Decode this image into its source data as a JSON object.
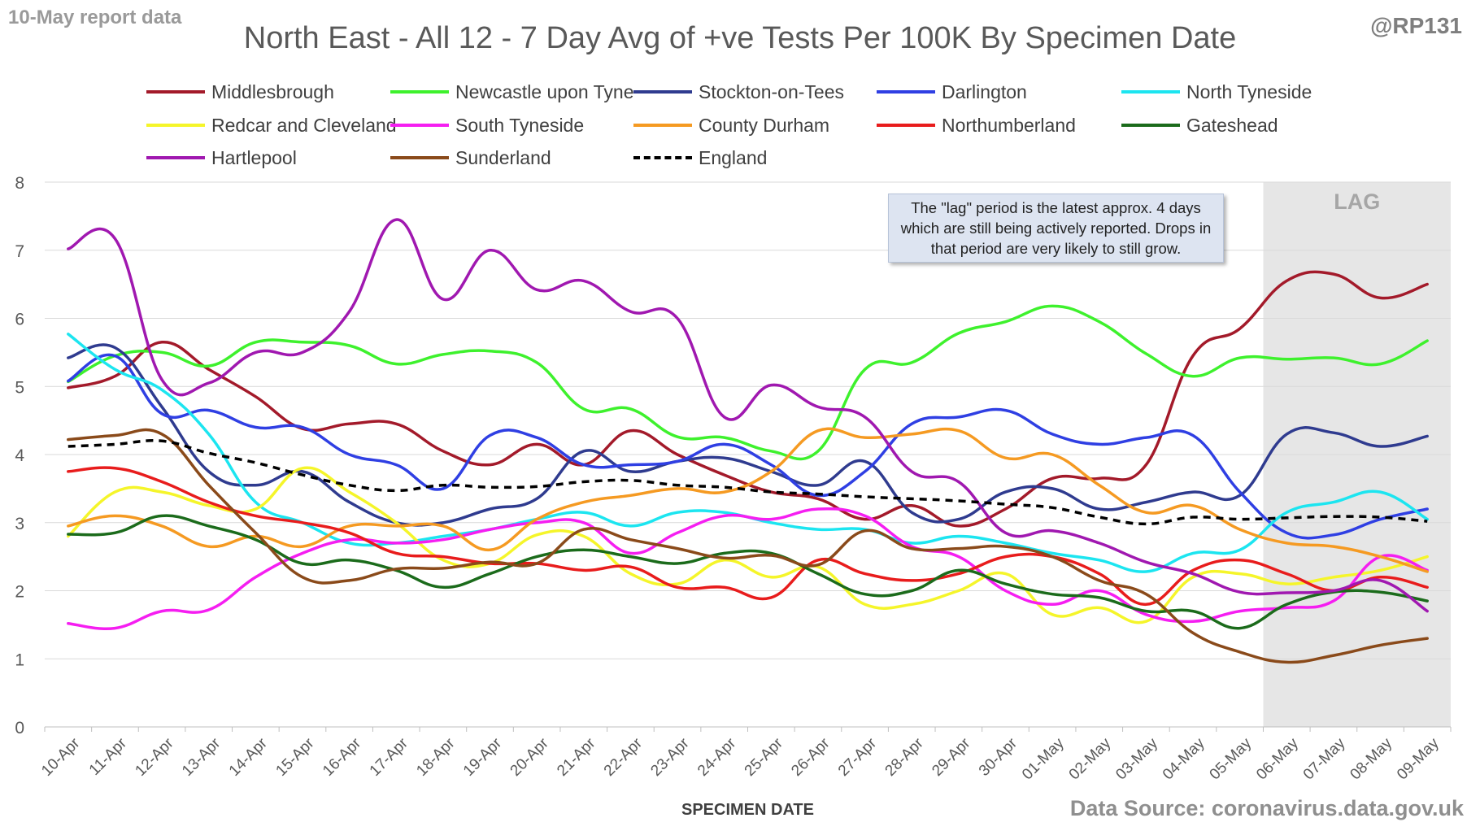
{
  "corner_left": "10-May report data",
  "corner_right": "@RP131",
  "source": "Data Source: coronavirus.data.gov.uk",
  "note": "The \"lag\" period is the latest approx. 4 days which are still being actively reported.  Drops in that period are very likely to still grow.",
  "chart_data": {
    "type": "line",
    "title": "North East - All 12 - 7 Day Avg of +ve Tests Per 100K By Specimen Date",
    "xlabel": "SPECIMEN DATE",
    "ylabel": "",
    "ylim": [
      0,
      8
    ],
    "yticks": [
      "0",
      "1",
      "2",
      "3",
      "4",
      "5",
      "6",
      "7",
      "8"
    ],
    "grid": "horizontal",
    "legend_position": "top",
    "lag_label": "LAG",
    "lag_start": "06-May",
    "categories": [
      "10-Apr",
      "11-Apr",
      "12-Apr",
      "13-Apr",
      "14-Apr",
      "15-Apr",
      "16-Apr",
      "17-Apr",
      "18-Apr",
      "19-Apr",
      "20-Apr",
      "21-Apr",
      "22-Apr",
      "23-Apr",
      "24-Apr",
      "25-Apr",
      "26-Apr",
      "27-Apr",
      "28-Apr",
      "29-Apr",
      "30-Apr",
      "01-May",
      "02-May",
      "03-May",
      "04-May",
      "05-May",
      "06-May",
      "07-May",
      "08-May",
      "09-May"
    ],
    "series": [
      {
        "name": "Middlesbrough",
        "color": "#a31a2a",
        "dashed": false,
        "values": [
          4.98,
          5.15,
          5.65,
          5.25,
          4.85,
          4.38,
          4.45,
          4.45,
          4.05,
          3.85,
          4.15,
          3.85,
          4.35,
          4.0,
          3.7,
          3.45,
          3.35,
          3.05,
          3.25,
          2.95,
          3.2,
          3.65,
          3.65,
          3.85,
          5.45,
          5.85,
          6.55,
          6.65,
          6.3,
          6.5
        ]
      },
      {
        "name": "Newcastle upon Tyne",
        "color": "#3ef12d",
        "dashed": false,
        "values": [
          5.07,
          5.45,
          5.5,
          5.3,
          5.65,
          5.65,
          5.6,
          5.33,
          5.47,
          5.52,
          5.35,
          4.67,
          4.67,
          4.26,
          4.25,
          4.05,
          4.05,
          5.25,
          5.35,
          5.78,
          5.95,
          6.18,
          5.95,
          5.48,
          5.15,
          5.42,
          5.4,
          5.42,
          5.33,
          5.67
        ]
      },
      {
        "name": "Stockton-on-Tees",
        "color": "#2f3b8f",
        "dashed": false,
        "values": [
          5.42,
          5.57,
          4.7,
          3.75,
          3.55,
          3.75,
          3.3,
          3.0,
          3.0,
          3.2,
          3.35,
          4.05,
          3.75,
          3.9,
          3.95,
          3.75,
          3.55,
          3.9,
          3.15,
          3.05,
          3.45,
          3.5,
          3.2,
          3.3,
          3.45,
          3.4,
          4.3,
          4.32,
          4.12,
          4.27
        ]
      },
      {
        "name": "Darlington",
        "color": "#2f3fe3",
        "dashed": false,
        "values": [
          5.08,
          5.45,
          4.6,
          4.65,
          4.4,
          4.4,
          4.0,
          3.85,
          3.5,
          4.28,
          4.25,
          3.85,
          3.85,
          3.9,
          4.15,
          3.85,
          3.4,
          3.75,
          4.45,
          4.55,
          4.65,
          4.3,
          4.15,
          4.25,
          4.28,
          3.45,
          2.85,
          2.82,
          3.05,
          3.2
        ]
      },
      {
        "name": "North Tyneside",
        "color": "#1ce5f0",
        "dashed": false,
        "values": [
          5.77,
          5.25,
          4.95,
          4.3,
          3.3,
          3.0,
          2.7,
          2.7,
          2.8,
          2.9,
          3.05,
          3.15,
          2.95,
          3.15,
          3.15,
          3.0,
          2.9,
          2.9,
          2.7,
          2.8,
          2.7,
          2.55,
          2.45,
          2.28,
          2.55,
          2.6,
          3.15,
          3.3,
          3.45,
          3.05
        ]
      },
      {
        "name": "Redcar and Cleveland",
        "color": "#f5f52a",
        "dashed": false,
        "values": [
          2.8,
          3.45,
          3.45,
          3.25,
          3.2,
          3.8,
          3.45,
          3.0,
          2.45,
          2.4,
          2.82,
          2.8,
          2.25,
          2.1,
          2.45,
          2.2,
          2.35,
          1.8,
          1.8,
          2.0,
          2.25,
          1.65,
          1.75,
          1.55,
          2.2,
          2.25,
          2.1,
          2.2,
          2.3,
          2.5
        ]
      },
      {
        "name": "South Tyneside",
        "color": "#f51ef1",
        "dashed": false,
        "values": [
          1.52,
          1.45,
          1.7,
          1.72,
          2.2,
          2.55,
          2.75,
          2.7,
          2.75,
          2.9,
          3.0,
          3.0,
          2.55,
          2.85,
          3.1,
          3.05,
          3.2,
          3.1,
          2.65,
          2.5,
          2.0,
          1.8,
          2.0,
          1.65,
          1.55,
          1.7,
          1.75,
          1.85,
          2.5,
          2.3
        ]
      },
      {
        "name": "County Durham",
        "color": "#f59a22",
        "dashed": false,
        "values": [
          2.95,
          3.1,
          2.95,
          2.65,
          2.8,
          2.65,
          2.95,
          2.95,
          2.95,
          2.6,
          3.05,
          3.3,
          3.4,
          3.5,
          3.45,
          3.75,
          4.35,
          4.25,
          4.3,
          4.35,
          3.95,
          4.0,
          3.55,
          3.15,
          3.25,
          2.9,
          2.7,
          2.65,
          2.5,
          2.28
        ]
      },
      {
        "name": "Northumberland",
        "color": "#e81c1c",
        "dashed": false,
        "values": [
          3.75,
          3.8,
          3.6,
          3.3,
          3.1,
          3.0,
          2.85,
          2.55,
          2.5,
          2.4,
          2.4,
          2.3,
          2.35,
          2.05,
          2.05,
          1.9,
          2.45,
          2.25,
          2.15,
          2.25,
          2.5,
          2.5,
          2.25,
          1.8,
          2.3,
          2.45,
          2.25,
          2.0,
          2.2,
          2.05
        ]
      },
      {
        "name": "Gateshead",
        "color": "#1b6b1b",
        "dashed": false,
        "values": [
          2.83,
          2.85,
          3.1,
          2.95,
          2.75,
          2.4,
          2.45,
          2.3,
          2.05,
          2.25,
          2.5,
          2.6,
          2.5,
          2.4,
          2.55,
          2.55,
          2.25,
          1.95,
          2.0,
          2.3,
          2.1,
          1.95,
          1.9,
          1.7,
          1.7,
          1.45,
          1.8,
          1.98,
          1.98,
          1.85
        ]
      },
      {
        "name": "Hartlepool",
        "color": "#a018b0",
        "dashed": false,
        "values": [
          7.02,
          7.17,
          5.1,
          5.05,
          5.5,
          5.5,
          6.1,
          7.45,
          6.28,
          7.0,
          6.42,
          6.55,
          6.1,
          6.0,
          4.55,
          5.02,
          4.7,
          4.55,
          3.75,
          3.6,
          2.85,
          2.88,
          2.7,
          2.42,
          2.25,
          1.98,
          1.97,
          2.0,
          2.15,
          1.7
        ]
      },
      {
        "name": "Sunderland",
        "color": "#8a4a1a",
        "dashed": false,
        "values": [
          4.22,
          4.28,
          4.3,
          3.55,
          2.85,
          2.2,
          2.15,
          2.32,
          2.33,
          2.42,
          2.4,
          2.9,
          2.75,
          2.62,
          2.48,
          2.52,
          2.38,
          2.88,
          2.62,
          2.62,
          2.65,
          2.5,
          2.15,
          1.95,
          1.38,
          1.1,
          0.95,
          1.05,
          1.2,
          1.3
        ]
      },
      {
        "name": "England",
        "color": "#000000",
        "dashed": true,
        "values": [
          4.12,
          4.15,
          4.2,
          4.02,
          3.88,
          3.7,
          3.55,
          3.47,
          3.55,
          3.52,
          3.53,
          3.6,
          3.62,
          3.55,
          3.52,
          3.45,
          3.42,
          3.38,
          3.35,
          3.32,
          3.27,
          3.22,
          3.08,
          2.98,
          3.08,
          3.05,
          3.07,
          3.09,
          3.08,
          3.02
        ]
      }
    ]
  }
}
